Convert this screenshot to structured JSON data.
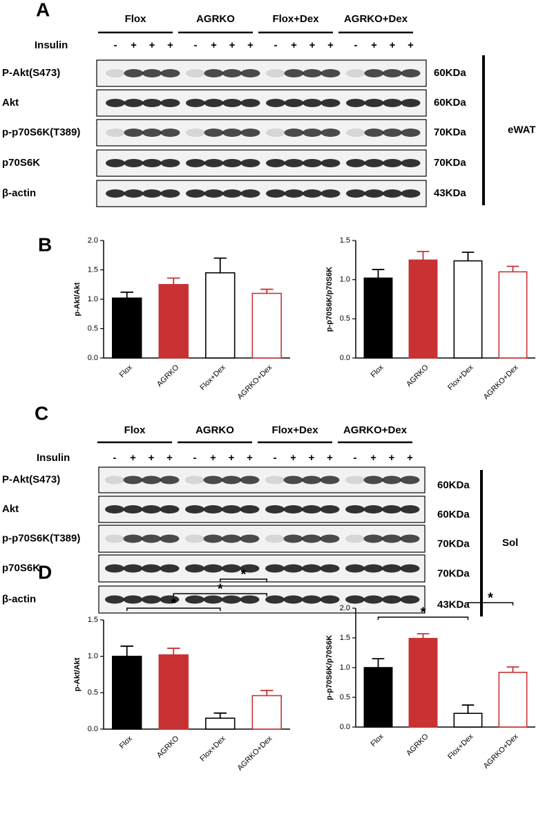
{
  "panels": [
    "A",
    "B",
    "C",
    "D"
  ],
  "blots": [
    {
      "groups": [
        "Flox",
        "AGRKO",
        "Flox+Dex",
        "AGRKO+Dex"
      ],
      "insulin_label": "Insulin",
      "insulin": [
        "-",
        "+",
        "+",
        "+",
        "-",
        "+",
        "+",
        "+",
        "-",
        "+",
        "+",
        "+",
        "-",
        "+",
        "+",
        "+"
      ],
      "rows": [
        {
          "label": "P-Akt(S473)",
          "size": "60KDa"
        },
        {
          "label": "Akt",
          "size": "60KDa"
        },
        {
          "label": "p-p70S6K(T389)",
          "size": "70KDa"
        },
        {
          "label": "p70S6K",
          "size": "70KDa"
        },
        {
          "label": "β-actin",
          "size": "43KDa"
        }
      ],
      "tissue": "eWAT"
    },
    {
      "groups": [
        "Flox",
        "AGRKO",
        "Flox+Dex",
        "AGRKO+Dex"
      ],
      "insulin_label": "Insulin",
      "insulin": [
        "-",
        "+",
        "+",
        "+",
        "-",
        "+",
        "+",
        "+",
        "-",
        "+",
        "+",
        "+",
        "-",
        "+",
        "+",
        "+"
      ],
      "rows": [
        {
          "label": "P-Akt(S473)",
          "size": "60KDa"
        },
        {
          "label": "Akt",
          "size": "60KDa"
        },
        {
          "label": "p-p70S6K(T389)",
          "size": "70KDa"
        },
        {
          "label": "p70S6K",
          "size": "70KDa"
        },
        {
          "label": "β-actin",
          "size": "43KDa"
        }
      ],
      "tissue": "Sol"
    }
  ],
  "chart_data": [
    {
      "type": "bar",
      "ylabel": "p-Akt/Akt",
      "categories": [
        "Flox",
        "AGRKO",
        "Flox+Dex",
        "AGRKO+Dex"
      ],
      "values": [
        1.02,
        1.25,
        1.45,
        1.1
      ],
      "errors": [
        0.1,
        0.11,
        0.25,
        0.07
      ],
      "colors": [
        "#000000",
        "#c83232",
        "#000000",
        "#c83232"
      ],
      "filled": [
        true,
        true,
        false,
        false
      ],
      "ylim": [
        0,
        2
      ],
      "yticks": [
        {
          "value": 0,
          "label": "0.0"
        },
        0.5,
        {
          "value": 1,
          "label": "1.0"
        },
        1.5,
        {
          "value": 2,
          "label": "2.0"
        }
      ],
      "annotations": []
    },
    {
      "type": "bar",
      "ylabel": "p-p70S6K/p70S6K",
      "categories": [
        "Flox",
        "AGRKO",
        "Flox+Dex",
        "AGRKO+Dex"
      ],
      "values": [
        1.02,
        1.25,
        1.24,
        1.1
      ],
      "errors": [
        0.11,
        0.11,
        0.11,
        0.07
      ],
      "colors": [
        "#000000",
        "#c83232",
        "#000000",
        "#c83232"
      ],
      "filled": [
        true,
        true,
        false,
        false
      ],
      "ylim": [
        0,
        1.5
      ],
      "yticks": [
        {
          "value": 0,
          "label": "0.0"
        },
        0.5,
        {
          "value": 1,
          "label": "1.0"
        },
        1.5
      ],
      "annotations": []
    },
    {
      "type": "bar",
      "ylabel": "p-Akt/Akt",
      "categories": [
        "Flox",
        "AGRKO",
        "Flox+Dex",
        "AGRKO+Dex"
      ],
      "values": [
        1.0,
        1.02,
        0.15,
        0.46
      ],
      "errors": [
        0.14,
        0.09,
        0.07,
        0.07
      ],
      "colors": [
        "#000000",
        "#c83232",
        "#000000",
        "#c83232"
      ],
      "filled": [
        true,
        true,
        false,
        false
      ],
      "ylim": [
        0,
        1.5
      ],
      "yticks": [
        {
          "value": 0,
          "label": "0.0"
        },
        0.5,
        {
          "value": 1,
          "label": "1.0"
        },
        1.5
      ],
      "annotations": [
        {
          "pair": [
            0,
            2
          ],
          "text": "*"
        },
        {
          "pair": [
            1,
            3
          ],
          "text": "*"
        },
        {
          "pair": [
            2,
            3
          ],
          "text": "*"
        }
      ]
    },
    {
      "type": "bar",
      "ylabel": "p-p70S6K/p70S6K",
      "categories": [
        "Flox",
        "AGRKO",
        "Flox+Dex",
        "AGRKO+Dex"
      ],
      "values": [
        1.0,
        1.49,
        0.23,
        0.92
      ],
      "errors": [
        0.15,
        0.08,
        0.14,
        0.09
      ],
      "colors": [
        "#000000",
        "#c83232",
        "#000000",
        "#c83232"
      ],
      "filled": [
        true,
        true,
        false,
        false
      ],
      "ylim": [
        0,
        2
      ],
      "yticks": [
        {
          "value": 0,
          "label": "0.0"
        },
        0.5,
        {
          "value": 1,
          "label": "1.0"
        },
        1.5,
        {
          "value": 2,
          "label": "2.0"
        }
      ],
      "annotations": [
        {
          "pair": [
            0,
            2
          ],
          "text": "*"
        },
        {
          "pair": [
            2,
            3
          ],
          "text": "*"
        }
      ]
    }
  ]
}
